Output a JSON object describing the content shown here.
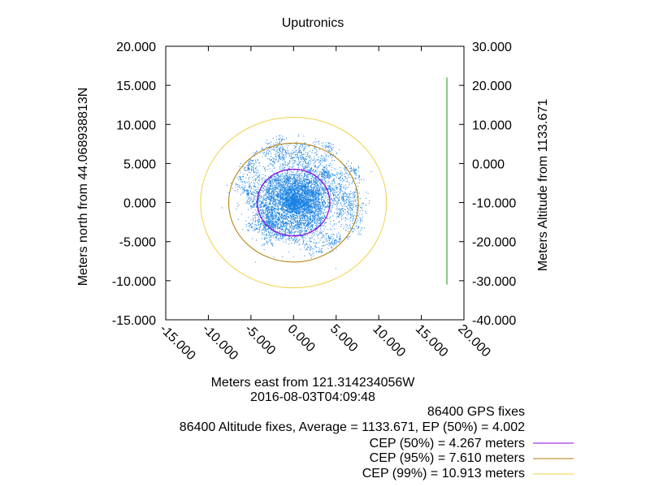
{
  "chart_data": {
    "type": "scatter",
    "title": "Uputronics",
    "xlabel": "Meters east from 121.314234056W",
    "xlabel2": "2016-08-03T04:09:48",
    "ylabel": "Meters north from 44.068938813N",
    "y2label": "Meters Altitude from 1133.671",
    "xlim": [
      -15,
      20
    ],
    "ylim": [
      -15,
      20
    ],
    "y2lim": [
      -40,
      30
    ],
    "x_ticks": [
      "-15.000",
      "-10.000",
      "-5.000",
      "0.000",
      "5.000",
      "10.000",
      "15.000",
      "20.000"
    ],
    "y_ticks": [
      "-15.000",
      "-10.000",
      "-5.000",
      "0.000",
      "5.000",
      "10.000",
      "15.000",
      "20.000"
    ],
    "y2_ticks": [
      "-40.000",
      "-30.000",
      "-20.000",
      "-10.000",
      "0.000",
      "10.000",
      "20.000",
      "30.000"
    ],
    "grid": false,
    "legend_position": "bottom-right, below plot",
    "legend": {
      "gps_fixes": "86400 GPS fixes",
      "altitude_fixes": "86400 Altitude fixes, Average = 1133.671, EP (50%) = 4.002",
      "cep50": "CEP (50%) = 4.267 meters",
      "cep95": "CEP (95%) = 7.610 meters",
      "cep99": "CEP (99%) = 10.913 meters"
    },
    "cep_radii": {
      "cep50": 4.267,
      "cep95": 7.61,
      "cep99": 10.913
    },
    "altitude_bar": {
      "x": 18,
      "y2_from": -31,
      "y2_to": 22
    },
    "colors": {
      "fixes": "#1a82e2",
      "altitude": "#11a000",
      "cep50": "#8a00e0",
      "cep95": "#b07a00",
      "cep99": "#f2d14a"
    }
  }
}
